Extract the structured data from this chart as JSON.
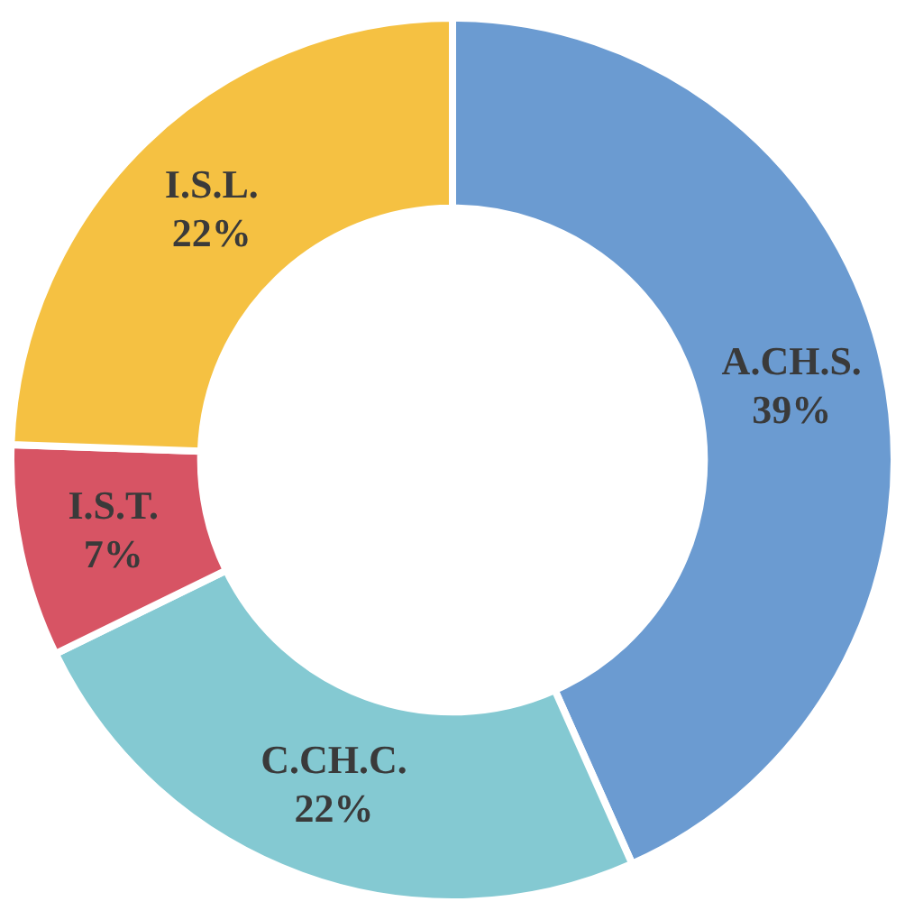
{
  "chart_data": {
    "type": "donut",
    "categories": [
      "A.CH.S.",
      "C.CH.C.",
      "I.S.T.",
      "I.S.L."
    ],
    "values": [
      39,
      22,
      7,
      22
    ],
    "value_labels": [
      "39%",
      "22%",
      "7%",
      "22%"
    ],
    "colors": [
      "#6b9bd1",
      "#84c9d2",
      "#d75464",
      "#f5c142"
    ],
    "legend": false
  }
}
